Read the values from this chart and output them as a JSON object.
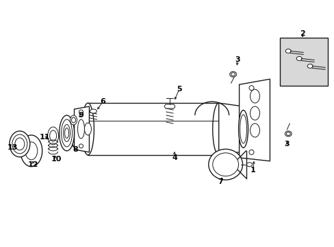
{
  "bg_color": "#ffffff",
  "line_color": "#1a1a1a",
  "label_color": "#000000",
  "box_fill": "#d8d8d8",
  "fig_width": 4.89,
  "fig_height": 3.6,
  "dpi": 100
}
